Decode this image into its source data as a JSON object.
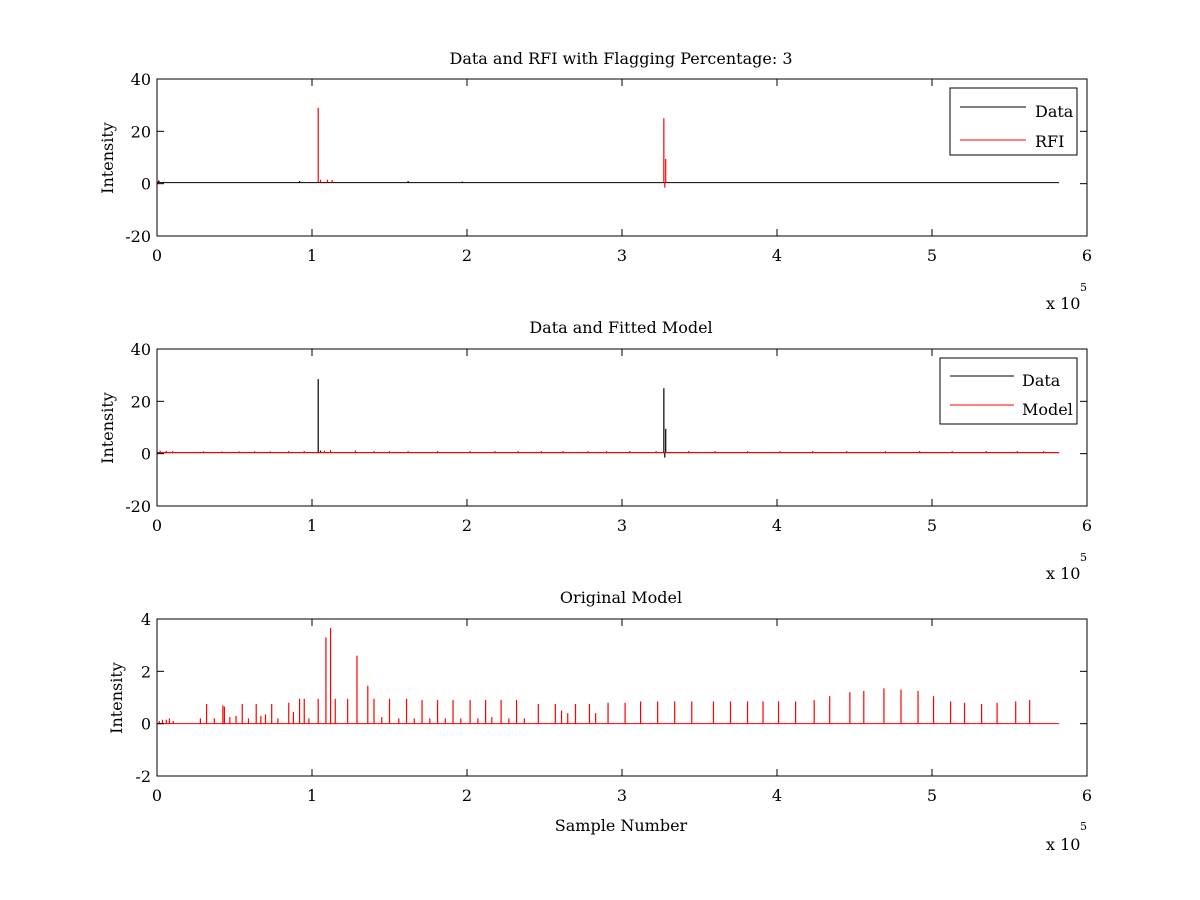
{
  "chart_data": [
    {
      "type": "line",
      "title": "Data and RFI with Flagging Percentage: 3",
      "xlabel": "",
      "ylabel": "Intensity",
      "xlim": [
        0,
        600000
      ],
      "ylim": [
        -20,
        40
      ],
      "xticks": [
        0,
        1,
        2,
        3,
        4,
        5,
        6
      ],
      "yticks": [
        -20,
        0,
        20,
        40
      ],
      "x_multiplier": "x 10",
      "x_multiplier_exp": "5",
      "grid": false,
      "legend_position": "top-right",
      "series": [
        {
          "name": "Data",
          "color": "#000000",
          "baseline": 0.4,
          "x_end": 582000,
          "spikes": [
            {
              "x": 1000,
              "y": 1.2
            },
            {
              "x": 92000,
              "y": 1.0
            },
            {
              "x": 162000,
              "y": 1.0
            },
            {
              "x": 197000,
              "y": 0.8
            }
          ]
        },
        {
          "name": "RFI",
          "color": "#ff0000",
          "baseline": null,
          "spikes": [
            {
              "x": 1500,
              "y": 1.0
            },
            {
              "x": 4500,
              "y": 0.8
            },
            {
              "x": 104000,
              "y": 29
            },
            {
              "x": 105500,
              "y": 1.5
            },
            {
              "x": 110000,
              "y": 1.5
            },
            {
              "x": 113000,
              "y": 1.4
            },
            {
              "x": 327000,
              "y": 25
            },
            {
              "x": 328200,
              "y": 9.5
            },
            {
              "x": 327600,
              "y": -1.5
            }
          ]
        }
      ]
    },
    {
      "type": "line",
      "title": "Data and Fitted Model",
      "xlabel": "",
      "ylabel": "Intensity",
      "xlim": [
        0,
        600000
      ],
      "ylim": [
        -20,
        40
      ],
      "xticks": [
        0,
        1,
        2,
        3,
        4,
        5,
        6
      ],
      "yticks": [
        -20,
        0,
        20,
        40
      ],
      "x_multiplier": "x 10",
      "x_multiplier_exp": "5",
      "grid": false,
      "legend_position": "top-right",
      "series": [
        {
          "name": "Data",
          "color": "#000000",
          "baseline": 0.4,
          "x_end": 582000,
          "spikes": [
            {
              "x": 104000,
              "y": 28.5
            },
            {
              "x": 105500,
              "y": 1.2
            },
            {
              "x": 327000,
              "y": 25
            },
            {
              "x": 328200,
              "y": 9.5
            },
            {
              "x": 327600,
              "y": -1.5
            }
          ]
        },
        {
          "name": "Model",
          "color": "#ff0000",
          "baseline": 0.4,
          "x_end": 582000,
          "spikes": [
            {
              "x": 2000,
              "y": 1.2
            },
            {
              "x": 6000,
              "y": 1.1
            },
            {
              "x": 10000,
              "y": 1.0
            },
            {
              "x": 30000,
              "y": 0.9
            },
            {
              "x": 42000,
              "y": 0.9
            },
            {
              "x": 53000,
              "y": 0.9
            },
            {
              "x": 63000,
              "y": 0.9
            },
            {
              "x": 73000,
              "y": 0.9
            },
            {
              "x": 85000,
              "y": 1.0
            },
            {
              "x": 95000,
              "y": 1.0
            },
            {
              "x": 108000,
              "y": 1.2
            },
            {
              "x": 112000,
              "y": 1.4
            },
            {
              "x": 128000,
              "y": 1.2
            },
            {
              "x": 140000,
              "y": 1.0
            },
            {
              "x": 150000,
              "y": 1.0
            },
            {
              "x": 162000,
              "y": 1.0
            },
            {
              "x": 181000,
              "y": 1.0
            },
            {
              "x": 202000,
              "y": 1.0
            },
            {
              "x": 218000,
              "y": 1.0
            },
            {
              "x": 233000,
              "y": 1.0
            },
            {
              "x": 248000,
              "y": 1.0
            },
            {
              "x": 262000,
              "y": 1.0
            },
            {
              "x": 278000,
              "y": 1.0
            },
            {
              "x": 290000,
              "y": 1.0
            },
            {
              "x": 305000,
              "y": 1.0
            },
            {
              "x": 322000,
              "y": 1.0
            },
            {
              "x": 343000,
              "y": 1.0
            },
            {
              "x": 360000,
              "y": 1.0
            },
            {
              "x": 381000,
              "y": 1.0
            },
            {
              "x": 402000,
              "y": 1.0
            },
            {
              "x": 423000,
              "y": 1.0
            },
            {
              "x": 445000,
              "y": 1.0
            },
            {
              "x": 470000,
              "y": 1.0
            },
            {
              "x": 492000,
              "y": 1.0
            },
            {
              "x": 513000,
              "y": 1.0
            },
            {
              "x": 535000,
              "y": 1.0
            },
            {
              "x": 555000,
              "y": 1.0
            },
            {
              "x": 572000,
              "y": 1.0
            }
          ]
        }
      ]
    },
    {
      "type": "line",
      "title": "Original Model",
      "xlabel": "Sample Number",
      "ylabel": "Intensity",
      "xlim": [
        0,
        600000
      ],
      "ylim": [
        -2,
        4
      ],
      "xticks": [
        0,
        1,
        2,
        3,
        4,
        5,
        6
      ],
      "yticks": [
        -2,
        0,
        2,
        4
      ],
      "x_multiplier": "x 10",
      "x_multiplier_exp": "5",
      "grid": false,
      "legend_position": "none",
      "series": [
        {
          "color": "#ff0000",
          "baseline": 0,
          "x_end": 582000,
          "spikes": [
            {
              "x": 1500,
              "y": 0.1
            },
            {
              "x": 3500,
              "y": 0.15
            },
            {
              "x": 6000,
              "y": 0.15
            },
            {
              "x": 8000,
              "y": 0.2
            },
            {
              "x": 10500,
              "y": 0.1
            },
            {
              "x": 28000,
              "y": 0.2
            },
            {
              "x": 32000,
              "y": 0.75
            },
            {
              "x": 37000,
              "y": 0.2
            },
            {
              "x": 42500,
              "y": 0.7
            },
            {
              "x": 43500,
              "y": 0.65
            },
            {
              "x": 47000,
              "y": 0.25
            },
            {
              "x": 51000,
              "y": 0.3
            },
            {
              "x": 55000,
              "y": 0.75
            },
            {
              "x": 59000,
              "y": 0.2
            },
            {
              "x": 64000,
              "y": 0.75
            },
            {
              "x": 67000,
              "y": 0.3
            },
            {
              "x": 70000,
              "y": 0.35
            },
            {
              "x": 74000,
              "y": 0.75
            },
            {
              "x": 78000,
              "y": 0.2
            },
            {
              "x": 85000,
              "y": 0.8
            },
            {
              "x": 88000,
              "y": 0.45
            },
            {
              "x": 92000,
              "y": 0.95
            },
            {
              "x": 95000,
              "y": 0.95
            },
            {
              "x": 98000,
              "y": 0.2
            },
            {
              "x": 104000,
              "y": 0.95
            },
            {
              "x": 109000,
              "y": 3.3
            },
            {
              "x": 112000,
              "y": 3.65
            },
            {
              "x": 115000,
              "y": 0.95
            },
            {
              "x": 123000,
              "y": 0.95
            },
            {
              "x": 129000,
              "y": 2.6
            },
            {
              "x": 136000,
              "y": 1.45
            },
            {
              "x": 140000,
              "y": 0.95
            },
            {
              "x": 145000,
              "y": 0.25
            },
            {
              "x": 150000,
              "y": 0.95
            },
            {
              "x": 156000,
              "y": 0.2
            },
            {
              "x": 161000,
              "y": 0.95
            },
            {
              "x": 166000,
              "y": 0.2
            },
            {
              "x": 171000,
              "y": 0.9
            },
            {
              "x": 176000,
              "y": 0.2
            },
            {
              "x": 181000,
              "y": 0.9
            },
            {
              "x": 186000,
              "y": 0.2
            },
            {
              "x": 191000,
              "y": 0.9
            },
            {
              "x": 196000,
              "y": 0.2
            },
            {
              "x": 202000,
              "y": 0.9
            },
            {
              "x": 207000,
              "y": 0.2
            },
            {
              "x": 212000,
              "y": 0.9
            },
            {
              "x": 216000,
              "y": 0.25
            },
            {
              "x": 222000,
              "y": 0.9
            },
            {
              "x": 227000,
              "y": 0.2
            },
            {
              "x": 232000,
              "y": 0.9
            },
            {
              "x": 237000,
              "y": 0.2
            },
            {
              "x": 246000,
              "y": 0.75
            },
            {
              "x": 257000,
              "y": 0.75
            },
            {
              "x": 261000,
              "y": 0.5
            },
            {
              "x": 265000,
              "y": 0.4
            },
            {
              "x": 270000,
              "y": 0.75
            },
            {
              "x": 279000,
              "y": 0.75
            },
            {
              "x": 283000,
              "y": 0.4
            },
            {
              "x": 291000,
              "y": 0.8
            },
            {
              "x": 302000,
              "y": 0.8
            },
            {
              "x": 312000,
              "y": 0.85
            },
            {
              "x": 323000,
              "y": 0.85
            },
            {
              "x": 334000,
              "y": 0.85
            },
            {
              "x": 345000,
              "y": 0.85
            },
            {
              "x": 359000,
              "y": 0.85
            },
            {
              "x": 370000,
              "y": 0.85
            },
            {
              "x": 381000,
              "y": 0.85
            },
            {
              "x": 391000,
              "y": 0.85
            },
            {
              "x": 401000,
              "y": 0.85
            },
            {
              "x": 412000,
              "y": 0.85
            },
            {
              "x": 424000,
              "y": 0.9
            },
            {
              "x": 434000,
              "y": 1.05
            },
            {
              "x": 447000,
              "y": 1.2
            },
            {
              "x": 456000,
              "y": 1.25
            },
            {
              "x": 469000,
              "y": 1.35
            },
            {
              "x": 480000,
              "y": 1.3
            },
            {
              "x": 491000,
              "y": 1.25
            },
            {
              "x": 501000,
              "y": 1.05
            },
            {
              "x": 512000,
              "y": 0.85
            },
            {
              "x": 521000,
              "y": 0.8
            },
            {
              "x": 532000,
              "y": 0.75
            },
            {
              "x": 542000,
              "y": 0.8
            },
            {
              "x": 554000,
              "y": 0.85
            },
            {
              "x": 563000,
              "y": 0.9
            }
          ]
        }
      ]
    }
  ]
}
